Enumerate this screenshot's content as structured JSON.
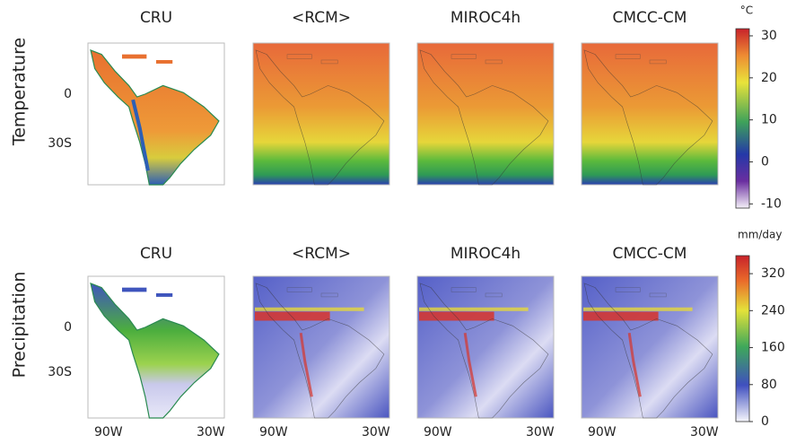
{
  "figure": {
    "rows": [
      {
        "label": "Temperature",
        "titles": [
          "CRU",
          "<RCM>",
          "MIROC4h",
          "CMCC-CM"
        ],
        "lat_labels": [
          "0",
          "30S"
        ],
        "colorbar": {
          "unit": "°C",
          "lim": [
            -11,
            31.7
          ],
          "ticks": [
            30,
            20,
            10,
            0,
            -10
          ]
        }
      },
      {
        "label": "Precipitation",
        "titles": [
          "CRU",
          "<RCM>",
          "MIROC4h",
          "CMCC-CM"
        ],
        "lat_labels": [
          "0",
          "30S"
        ],
        "lon_labels": [
          "90W",
          "30W"
        ],
        "colorbar": {
          "unit": "mm/day",
          "lim": [
            0,
            359
          ],
          "ticks": [
            320,
            240,
            160,
            80,
            0
          ]
        }
      }
    ]
  }
}
